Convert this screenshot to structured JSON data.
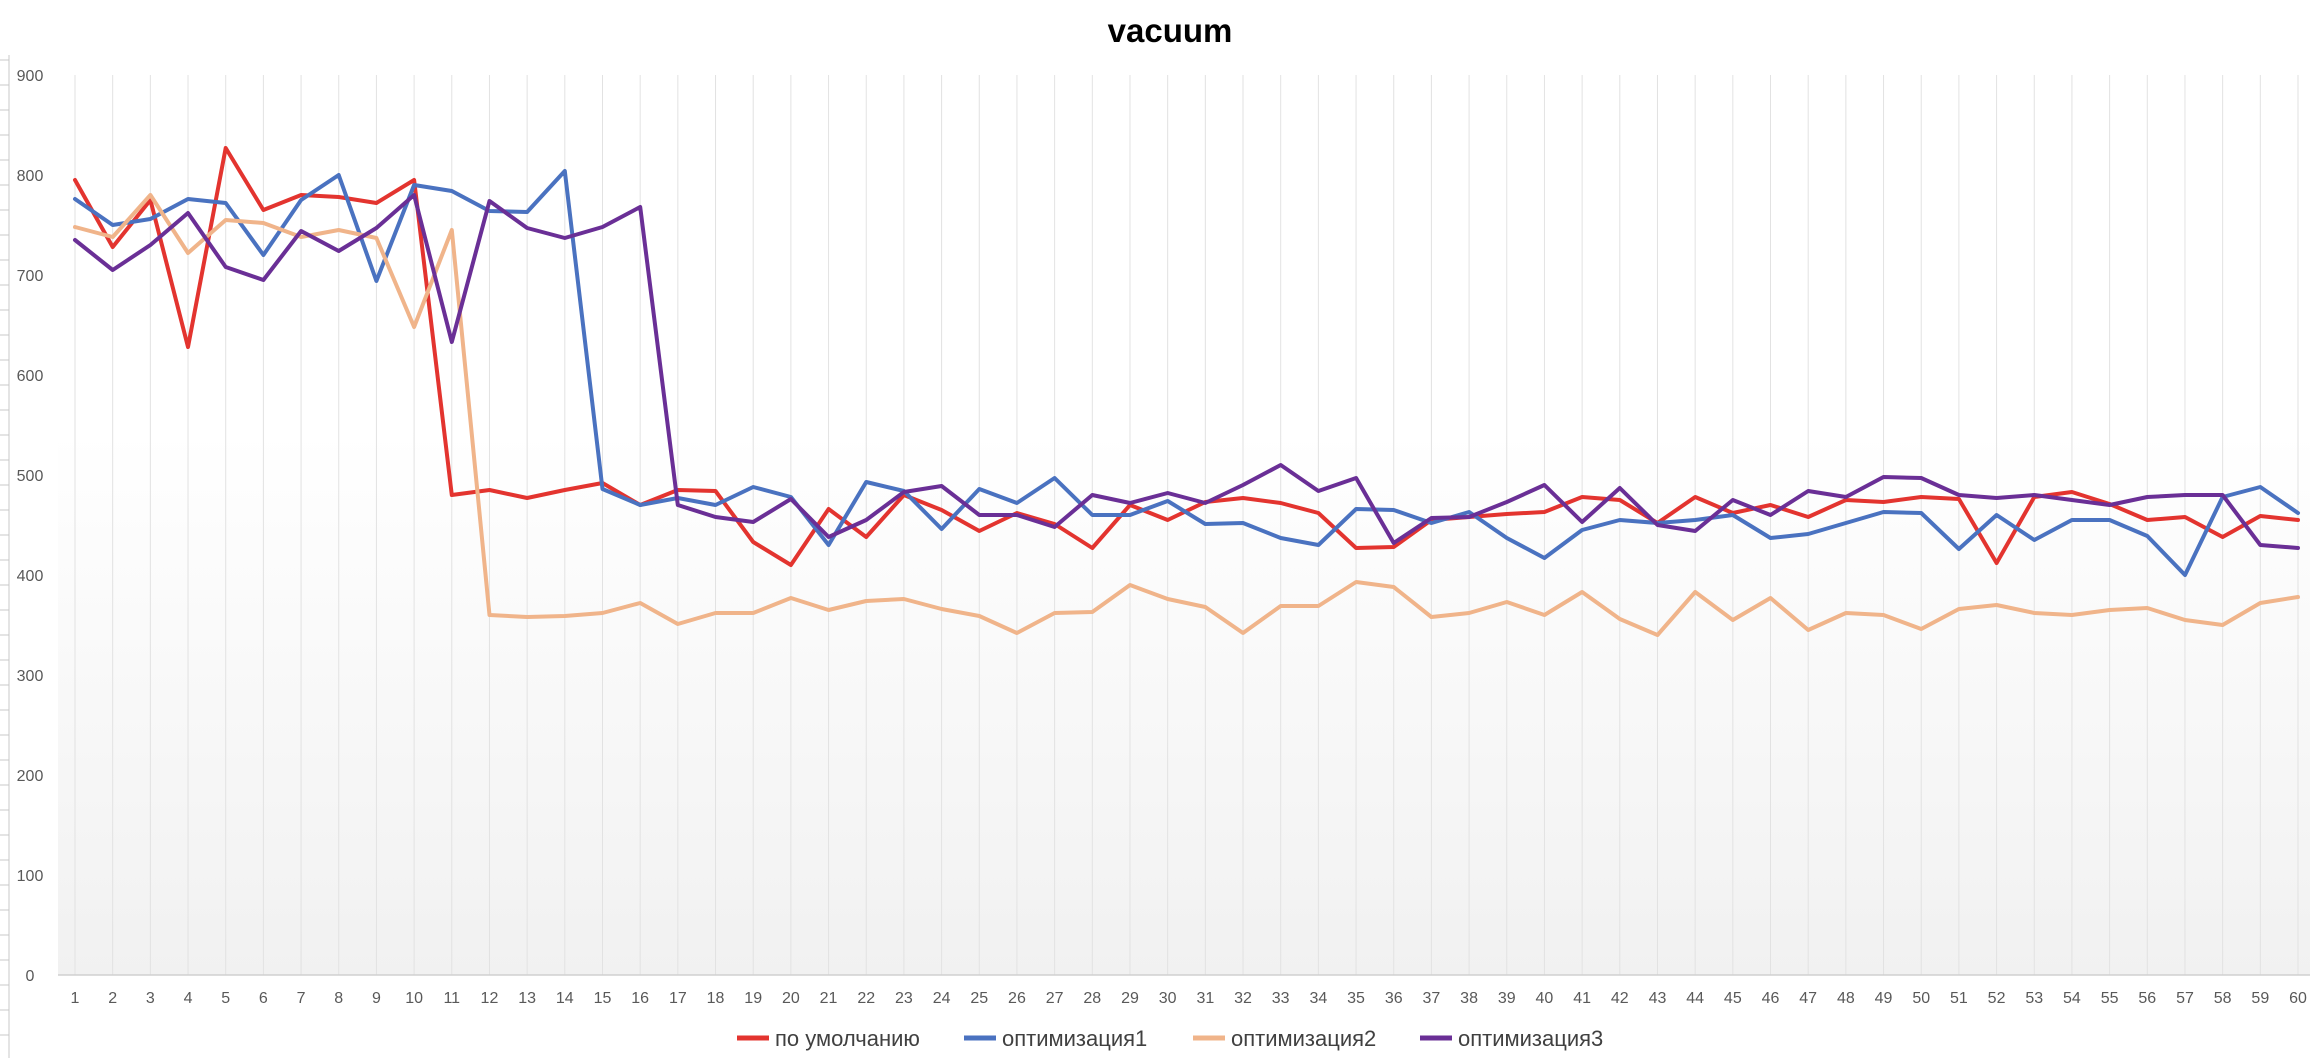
{
  "chart_data": {
    "type": "line",
    "title": "vacuum",
    "xlabel": "",
    "ylabel": "",
    "ylim": [
      0,
      900
    ],
    "yticks": [
      0,
      100,
      200,
      300,
      400,
      500,
      600,
      700,
      800,
      900
    ],
    "grid": "vertical",
    "legend": "bottom",
    "categories": [
      1,
      2,
      3,
      4,
      5,
      6,
      7,
      8,
      9,
      10,
      11,
      12,
      13,
      14,
      15,
      16,
      17,
      18,
      19,
      20,
      21,
      22,
      23,
      24,
      25,
      26,
      27,
      28,
      29,
      30,
      31,
      32,
      33,
      34,
      35,
      36,
      37,
      38,
      39,
      40,
      41,
      42,
      43,
      44,
      45,
      46,
      47,
      48,
      49,
      50,
      51,
      52,
      53,
      54,
      55,
      56,
      57,
      58,
      59,
      60
    ],
    "series": [
      {
        "name": "по умолчанию",
        "color": "#e3342f",
        "values": [
          795,
          728,
          775,
          628,
          827,
          765,
          780,
          778,
          772,
          795,
          480,
          485,
          477,
          485,
          492,
          470,
          485,
          484,
          433,
          410,
          466,
          438,
          480,
          465,
          444,
          462,
          451,
          427,
          470,
          455,
          473,
          477,
          472,
          462,
          427,
          428,
          455,
          458,
          461,
          463,
          478,
          475,
          452,
          478,
          462,
          470,
          458,
          475,
          473,
          478,
          476,
          412,
          478,
          483,
          471,
          455,
          458,
          438,
          459,
          455
        ]
      },
      {
        "name": "оптимизация1",
        "color": "#4a72c0",
        "values": [
          776,
          750,
          756,
          776,
          772,
          720,
          775,
          800,
          694,
          790,
          784,
          764,
          763,
          804,
          486,
          470,
          477,
          470,
          488,
          478,
          430,
          493,
          484,
          446,
          486,
          472,
          497,
          460,
          460,
          474,
          451,
          452,
          437,
          430,
          466,
          465,
          452,
          463,
          437,
          417,
          445,
          455,
          452,
          455,
          460,
          437,
          441,
          452,
          463,
          462,
          426,
          460,
          435,
          455,
          455,
          439,
          400,
          478,
          488,
          462
        ]
      },
      {
        "name": "оптимизация2",
        "color": "#f0b48a",
        "values": [
          748,
          738,
          780,
          722,
          755,
          752,
          738,
          745,
          737,
          648,
          745,
          360,
          358,
          359,
          362,
          372,
          351,
          362,
          362,
          377,
          365,
          374,
          376,
          366,
          359,
          342,
          362,
          363,
          390,
          376,
          368,
          342,
          369,
          369,
          393,
          388,
          358,
          362,
          373,
          360,
          383,
          356,
          340,
          383,
          355,
          377,
          345,
          362,
          360,
          346,
          366,
          370,
          362,
          360,
          365,
          367,
          355,
          350,
          372,
          378
        ]
      },
      {
        "name": "оптимизация3",
        "color": "#6a2f96",
        "values": [
          735,
          705,
          730,
          762,
          708,
          695,
          744,
          724,
          747,
          780,
          633,
          774,
          747,
          737,
          748,
          768,
          470,
          458,
          453,
          476,
          438,
          455,
          483,
          489,
          460,
          460,
          448,
          480,
          472,
          482,
          472,
          490,
          510,
          484,
          497,
          432,
          457,
          458,
          473,
          490,
          453,
          487,
          450,
          444,
          475,
          460,
          484,
          478,
          498,
          497,
          480,
          477,
          480,
          475,
          470,
          478,
          480,
          480,
          430,
          427
        ]
      }
    ]
  }
}
